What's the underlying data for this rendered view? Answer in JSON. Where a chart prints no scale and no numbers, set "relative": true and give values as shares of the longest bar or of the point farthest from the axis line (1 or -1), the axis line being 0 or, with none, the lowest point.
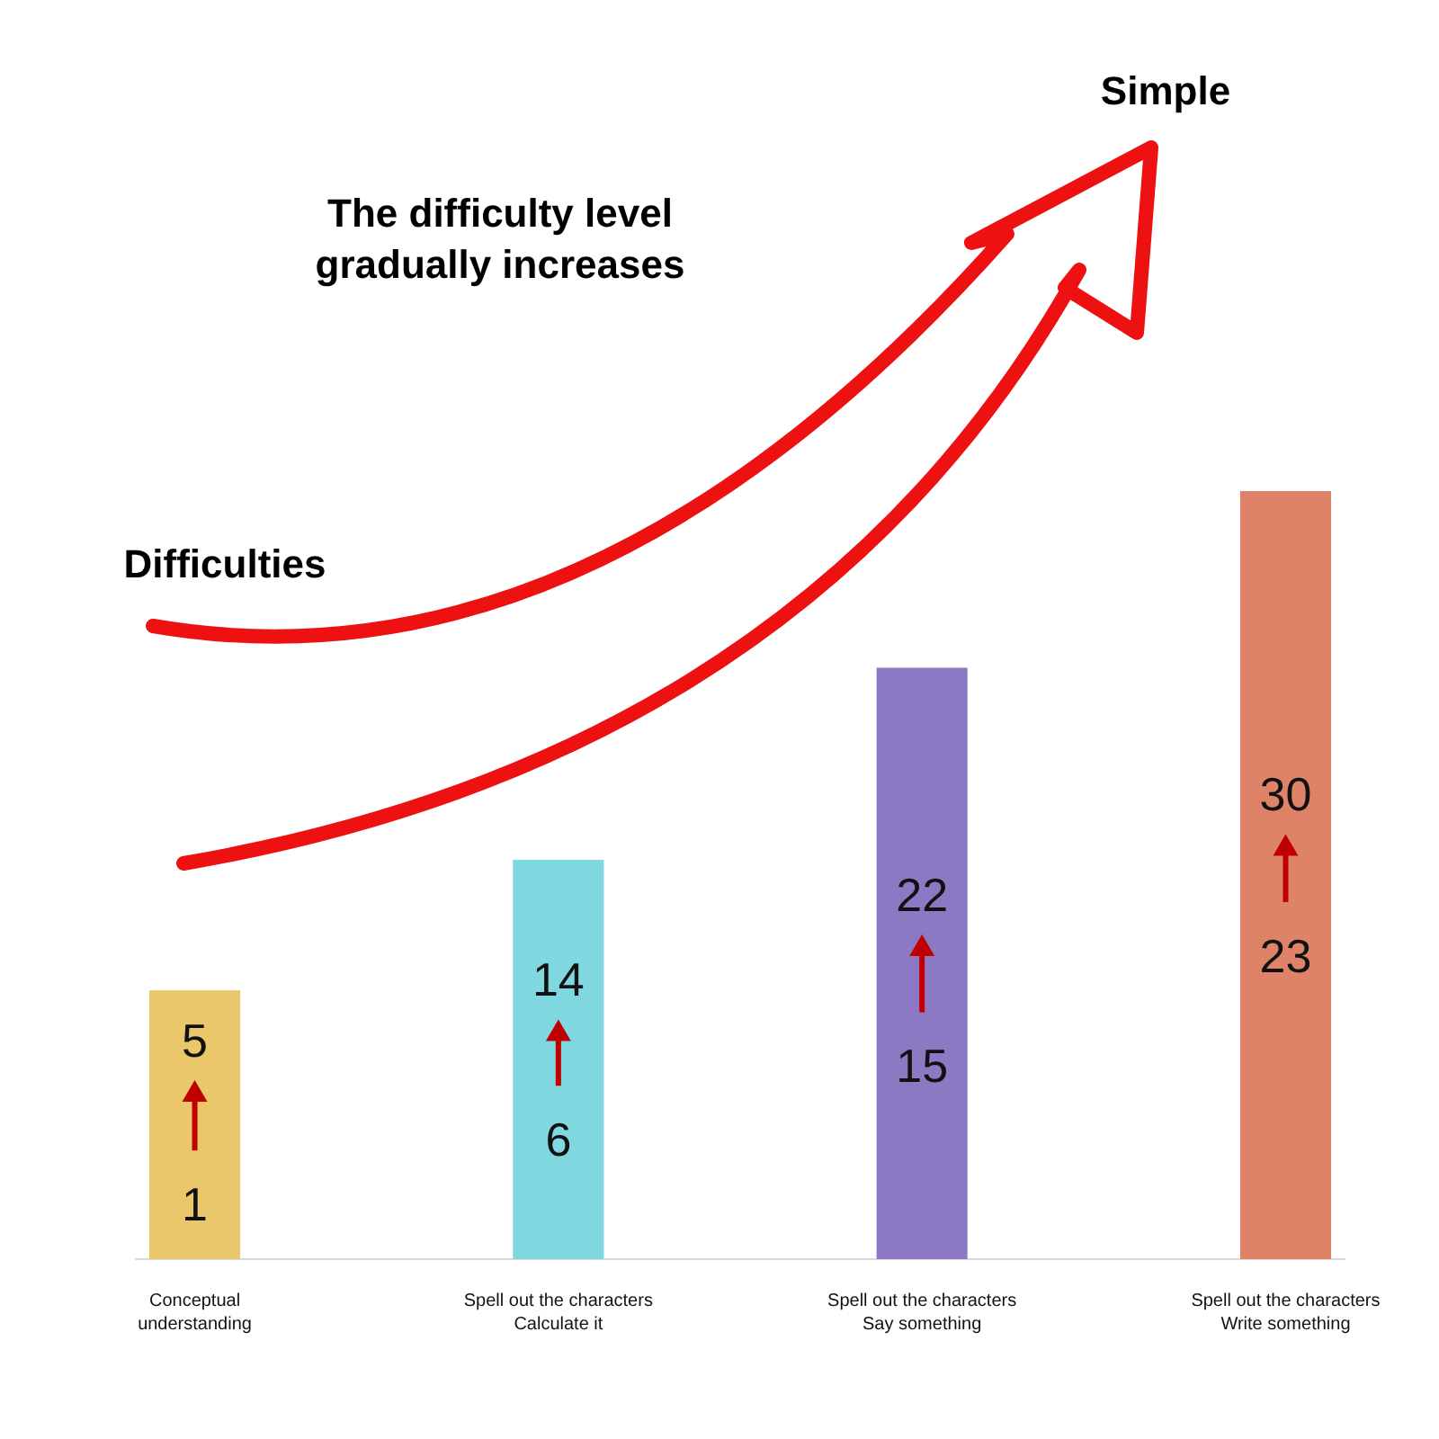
{
  "chart_data": {
    "type": "bar",
    "relative": true,
    "categories": [
      "Conceptual\nunderstanding",
      "Spell out the characters\nCalculate it",
      "Spell out the characters\nSay something",
      "Spell out the characters\nWrite something"
    ],
    "values": [
      0.35,
      0.52,
      0.77,
      1
    ],
    "colors": [
      "#ebc76b",
      "#7fd8df",
      "#8b79c4",
      "#de8268"
    ],
    "annotations": [
      "Simple",
      "The difficulty level\ngradually increases",
      "Difficulties",
      "5",
      "1",
      "14",
      "6",
      "22",
      "15",
      "30",
      "23"
    ]
  }
}
